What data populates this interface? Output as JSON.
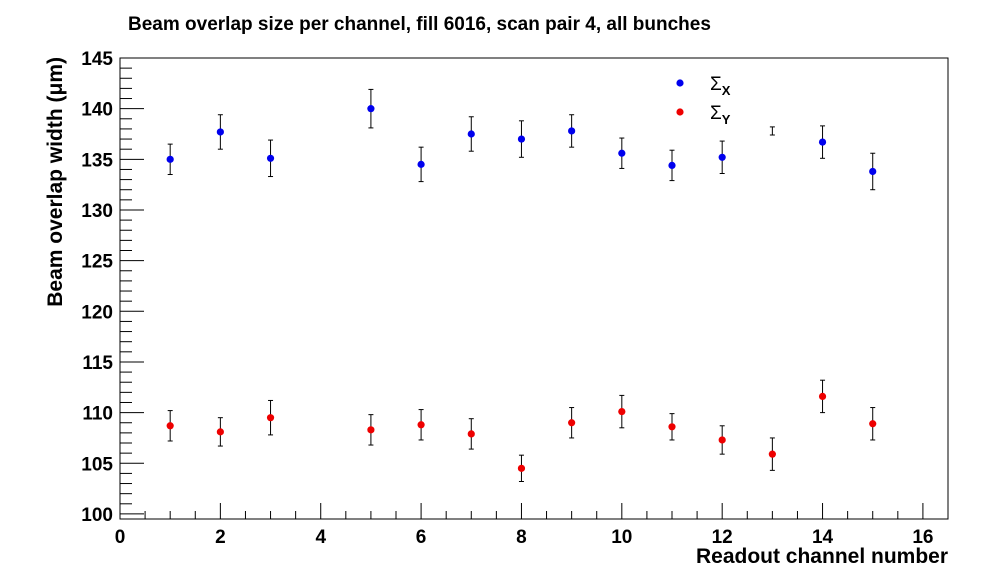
{
  "chart_data": {
    "type": "scatter",
    "title": "Beam overlap size per channel, fill 6016, scan pair 4, all bunches",
    "xlabel": "Readout channel number",
    "ylabel": "Beam overlap width (μm)",
    "xlim": [
      0,
      16.5
    ],
    "ylim": [
      99.5,
      145
    ],
    "x_ticks": [
      "0",
      "2",
      "4",
      "6",
      "8",
      "10",
      "12",
      "14",
      "16"
    ],
    "y_ticks": [
      "100",
      "105",
      "110",
      "115",
      "120",
      "125",
      "130",
      "135",
      "140",
      "145"
    ],
    "grid": false,
    "legend_position": "top-right",
    "series": [
      {
        "name": "Σ",
        "name_sub": "X",
        "color": "#0000ee",
        "points": [
          {
            "x": 1,
            "y": 135.0,
            "err": 1.5
          },
          {
            "x": 2,
            "y": 137.7,
            "err": 1.7
          },
          {
            "x": 3,
            "y": 135.1,
            "err": 1.8
          },
          {
            "x": 5,
            "y": 140.0,
            "err": 1.9
          },
          {
            "x": 6,
            "y": 134.5,
            "err": 1.7
          },
          {
            "x": 7,
            "y": 137.5,
            "err": 1.7
          },
          {
            "x": 8,
            "y": 137.0,
            "err": 1.8
          },
          {
            "x": 9,
            "y": 137.8,
            "err": 1.6
          },
          {
            "x": 10,
            "y": 135.6,
            "err": 1.5
          },
          {
            "x": 11,
            "y": 134.4,
            "err": 1.5
          },
          {
            "x": 12,
            "y": 135.2,
            "err": 1.6
          },
          {
            "x": 13,
            "y": 137.8,
            "err": 0.4
          },
          {
            "x": 14,
            "y": 136.7,
            "err": 1.6
          },
          {
            "x": 15,
            "y": 133.8,
            "err": 1.8
          }
        ]
      },
      {
        "name": "Σ",
        "name_sub": "Y",
        "color": "#ee0000",
        "points": [
          {
            "x": 1,
            "y": 108.7,
            "err": 1.5
          },
          {
            "x": 2,
            "y": 108.1,
            "err": 1.4
          },
          {
            "x": 3,
            "y": 109.5,
            "err": 1.7
          },
          {
            "x": 5,
            "y": 108.3,
            "err": 1.5
          },
          {
            "x": 6,
            "y": 108.8,
            "err": 1.5
          },
          {
            "x": 7,
            "y": 107.9,
            "err": 1.5
          },
          {
            "x": 8,
            "y": 104.5,
            "err": 1.3
          },
          {
            "x": 9,
            "y": 109.0,
            "err": 1.5
          },
          {
            "x": 10,
            "y": 110.1,
            "err": 1.6
          },
          {
            "x": 11,
            "y": 108.6,
            "err": 1.3
          },
          {
            "x": 12,
            "y": 107.3,
            "err": 1.4
          },
          {
            "x": 13,
            "y": 105.9,
            "err": 1.6
          },
          {
            "x": 14,
            "y": 111.6,
            "err": 1.6
          },
          {
            "x": 15,
            "y": 108.9,
            "err": 1.6
          }
        ]
      }
    ]
  }
}
